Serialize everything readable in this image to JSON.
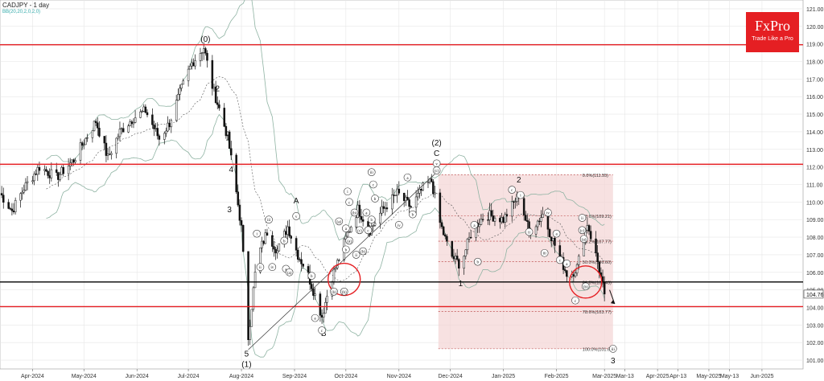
{
  "header": {
    "title": "CADJPY - 1 day",
    "indicator": "BB(20,20,2,0,2,0)"
  },
  "logo": {
    "brand": "FxPro",
    "tagline": "Trade Like a Pro"
  },
  "colors": {
    "background": "#ffffff",
    "grid": "#e6e6e6",
    "resistance_support": "#e51f23",
    "horizontal_black": "#000000",
    "bollinger": "#8fb3a3",
    "fib_zone_fill": "#f4d4d4",
    "fib_line": "#b33333",
    "candle": "#111111",
    "logo_bg": "#e51f23"
  },
  "chart_data": {
    "type": "candlestick",
    "symbol": "CADJPY",
    "timeframe": "1 day",
    "ylim": [
      100.5,
      121.5
    ],
    "x_range": [
      "2024-03-13",
      "2025-06-25"
    ],
    "x_tick_labels": [
      {
        "date": "2024-04-01",
        "label": "Apr-2024"
      },
      {
        "date": "2024-05-01",
        "label": "May-2024"
      },
      {
        "date": "2024-06-01",
        "label": "Jun-2024"
      },
      {
        "date": "2024-07-01",
        "label": "Jul-2024"
      },
      {
        "date": "2024-08-01",
        "label": "Aug-2024"
      },
      {
        "date": "2024-09-01",
        "label": "Sep-2024"
      },
      {
        "date": "2024-10-01",
        "label": "Oct-2024"
      },
      {
        "date": "2024-11-01",
        "label": "Nov-2024"
      },
      {
        "date": "2024-12-01",
        "label": "Dec-2024"
      },
      {
        "date": "2025-01-01",
        "label": "Jan-2025"
      },
      {
        "date": "2025-02-01",
        "label": "Feb-2025"
      },
      {
        "date": "2025-03-01",
        "label": "Mar-2025"
      },
      {
        "date": "2025-03-13",
        "label": "Mar-13"
      },
      {
        "date": "2025-04-01",
        "label": "Apr-2025"
      },
      {
        "date": "2025-04-13",
        "label": "Apr-13"
      },
      {
        "date": "2025-05-01",
        "label": "May-2025"
      },
      {
        "date": "2025-05-13",
        "label": "May-13"
      },
      {
        "date": "2025-06-01",
        "label": "Jun-2025"
      }
    ],
    "y_tick_labels": [
      "101.00",
      "102.00",
      "103.00",
      "104.00",
      "105.00",
      "106.00",
      "107.00",
      "108.00",
      "109.00",
      "110.00",
      "111.00",
      "112.00",
      "113.00",
      "114.00",
      "115.00",
      "116.00",
      "117.00",
      "118.00",
      "119.00",
      "120.00",
      "121.00"
    ],
    "y_ticks": [
      101,
      102,
      103,
      104,
      105,
      106,
      107,
      108,
      109,
      110,
      111,
      112,
      113,
      114,
      115,
      116,
      117,
      118,
      119,
      120,
      121
    ],
    "last_price": {
      "value": 104.76,
      "label": "104.76"
    },
    "horizontal_lines": [
      {
        "y": 118.95,
        "color": "red"
      },
      {
        "y": 112.15,
        "color": "red"
      },
      {
        "y": 104.05,
        "color": "red"
      },
      {
        "y": 105.45,
        "color": "black"
      }
    ],
    "fibonacci": {
      "date_start": "2024-11-24",
      "date_end": "2025-03-06",
      "levels": [
        {
          "y": 111.55,
          "label": "0.0%(111.55)"
        },
        {
          "y": 109.21,
          "label": "23.6%(109.21)"
        },
        {
          "y": 107.77,
          "label": "38.2%(107.77)"
        },
        {
          "y": 106.6,
          "label": "50.0%(106.60)"
        },
        {
          "y": 105.43,
          "label": "61.8%(105.43)"
        },
        {
          "y": 103.77,
          "label": "78.6%(103.77)"
        },
        {
          "y": 101.65,
          "label": "100.0%(101.65)"
        }
      ]
    },
    "price_path": [
      {
        "date": "2024-03-13",
        "close": 110.5
      },
      {
        "date": "2024-03-20",
        "close": 109.5
      },
      {
        "date": "2024-03-27",
        "close": 110.8
      },
      {
        "date": "2024-04-05",
        "close": 112.0
      },
      {
        "date": "2024-04-15",
        "close": 111.4
      },
      {
        "date": "2024-04-25",
        "close": 112.4
      },
      {
        "date": "2024-05-02",
        "close": 113.6
      },
      {
        "date": "2024-05-08",
        "close": 114.6
      },
      {
        "date": "2024-05-15",
        "close": 112.5
      },
      {
        "date": "2024-05-22",
        "close": 114.0
      },
      {
        "date": "2024-05-30",
        "close": 114.8
      },
      {
        "date": "2024-06-06",
        "close": 115.2
      },
      {
        "date": "2024-06-14",
        "close": 113.6
      },
      {
        "date": "2024-06-20",
        "close": 114.5
      },
      {
        "date": "2024-06-26",
        "close": 116.2
      },
      {
        "date": "2024-07-03",
        "close": 117.9
      },
      {
        "date": "2024-07-10",
        "close": 118.8
      },
      {
        "date": "2024-07-15",
        "close": 116.6
      },
      {
        "date": "2024-07-19",
        "close": 115.3
      },
      {
        "date": "2024-07-24",
        "close": 113.7
      },
      {
        "date": "2024-07-28",
        "close": 111.2
      },
      {
        "date": "2024-08-01",
        "close": 108.5
      },
      {
        "date": "2024-08-05",
        "close": 102.3
      },
      {
        "date": "2024-08-10",
        "close": 106.8
      },
      {
        "date": "2024-08-16",
        "close": 108.3
      },
      {
        "date": "2024-08-22",
        "close": 107.2
      },
      {
        "date": "2024-08-28",
        "close": 108.6
      },
      {
        "date": "2024-09-03",
        "close": 107.0
      },
      {
        "date": "2024-09-08",
        "close": 106.1
      },
      {
        "date": "2024-09-13",
        "close": 104.7
      },
      {
        "date": "2024-09-17",
        "close": 103.5
      },
      {
        "date": "2024-09-22",
        "close": 105.5
      },
      {
        "date": "2024-09-27",
        "close": 106.8
      },
      {
        "date": "2024-10-02",
        "close": 108.2
      },
      {
        "date": "2024-10-08",
        "close": 109.6
      },
      {
        "date": "2024-10-15",
        "close": 108.4
      },
      {
        "date": "2024-10-22",
        "close": 109.5
      },
      {
        "date": "2024-10-31",
        "close": 110.5
      },
      {
        "date": "2024-11-08",
        "close": 109.7
      },
      {
        "date": "2024-11-15",
        "close": 110.8
      },
      {
        "date": "2024-11-20",
        "close": 111.2
      },
      {
        "date": "2024-11-25",
        "close": 108.8
      },
      {
        "date": "2024-12-01",
        "close": 107.0
      },
      {
        "date": "2024-12-07",
        "close": 106.4
      },
      {
        "date": "2024-12-14",
        "close": 108.5
      },
      {
        "date": "2024-12-22",
        "close": 109.3
      },
      {
        "date": "2025-01-01",
        "close": 109.0
      },
      {
        "date": "2025-01-10",
        "close": 110.4
      },
      {
        "date": "2025-01-16",
        "close": 108.3
      },
      {
        "date": "2025-01-24",
        "close": 109.3
      },
      {
        "date": "2025-02-01",
        "close": 107.3
      },
      {
        "date": "2025-02-08",
        "close": 105.7
      },
      {
        "date": "2025-02-13",
        "close": 106.3
      },
      {
        "date": "2025-02-19",
        "close": 108.8
      },
      {
        "date": "2025-02-25",
        "close": 106.6
      },
      {
        "date": "2025-03-01",
        "close": 104.76
      }
    ],
    "trendline": {
      "from": {
        "date": "2024-08-05",
        "y": 101.6
      },
      "to": {
        "date": "2024-11-22",
        "y": 111.6
      }
    },
    "circles": [
      {
        "date": "2024-09-30",
        "y": 105.6
      },
      {
        "date": "2025-02-18",
        "y": 105.45
      }
    ],
    "projection_arrow": {
      "from": {
        "date": "2025-03-04",
        "y": 105.0
      },
      "to": {
        "date": "2025-03-07",
        "y": 104.2
      }
    },
    "wave_labels": [
      {
        "text": "(0)",
        "date": "2024-07-11",
        "y": 119.3,
        "style": "plain"
      },
      {
        "text": "2",
        "date": "2024-07-18",
        "y": 116.5,
        "style": "plain"
      },
      {
        "text": "1",
        "date": "2024-07-24",
        "y": 113.7,
        "style": "plain"
      },
      {
        "text": "4",
        "date": "2024-07-26",
        "y": 111.9,
        "style": "plain"
      },
      {
        "text": "3",
        "date": "2024-07-25",
        "y": 109.6,
        "style": "plain"
      },
      {
        "text": "5",
        "date": "2024-08-04",
        "y": 101.4,
        "style": "plain"
      },
      {
        "text": "(1)",
        "date": "2024-08-04",
        "y": 100.8,
        "style": "plain"
      },
      {
        "text": "A",
        "date": "2024-09-02",
        "y": 110.1,
        "style": "plain"
      },
      {
        "text": "B",
        "date": "2024-09-18",
        "y": 102.55,
        "style": "plain"
      },
      {
        "text": "(2)",
        "date": "2024-11-23",
        "y": 113.4,
        "style": "plain"
      },
      {
        "text": "C",
        "date": "2024-11-23",
        "y": 112.8,
        "style": "plain"
      },
      {
        "text": "1",
        "date": "2024-12-07",
        "y": 105.4,
        "style": "plain"
      },
      {
        "text": "2",
        "date": "2025-01-10",
        "y": 111.3,
        "style": "plain"
      },
      {
        "text": "3",
        "date": "2025-03-06",
        "y": 101.0,
        "style": "plain"
      },
      {
        "text": "i",
        "date": "2024-08-10",
        "y": 108.2,
        "style": "circle"
      },
      {
        "text": "ii",
        "date": "2024-08-12",
        "y": 106.3,
        "style": "circle"
      },
      {
        "text": "iii",
        "date": "2024-08-17",
        "y": 109.0,
        "style": "circle"
      },
      {
        "text": "iv",
        "date": "2024-08-19",
        "y": 106.3,
        "style": "circle"
      },
      {
        "text": "b",
        "date": "2024-08-26",
        "y": 107.8,
        "style": "circle"
      },
      {
        "text": "a",
        "date": "2024-08-27",
        "y": 106.2,
        "style": "circle"
      },
      {
        "text": "v",
        "date": "2024-09-02",
        "y": 109.2,
        "style": "circle"
      },
      {
        "text": "(a)",
        "date": "2024-08-29",
        "y": 106.0,
        "style": "circle"
      },
      {
        "text": "b",
        "date": "2024-09-11",
        "y": 105.8,
        "style": "circle"
      },
      {
        "text": "a",
        "date": "2024-09-13",
        "y": 103.4,
        "style": "circle"
      },
      {
        "text": "c",
        "date": "2024-09-17",
        "y": 102.7,
        "style": "circle"
      },
      {
        "text": "(b)",
        "date": "2024-09-24",
        "y": 104.9,
        "style": "circle"
      },
      {
        "text": "(a)",
        "date": "2024-09-27",
        "y": 108.9,
        "style": "circle"
      },
      {
        "text": "(b)",
        "date": "2024-09-30",
        "y": 104.9,
        "style": "circle"
      },
      {
        "text": "i",
        "date": "2024-10-02",
        "y": 110.6,
        "style": "circle"
      },
      {
        "text": "a",
        "date": "2024-10-01",
        "y": 108.5,
        "style": "circle"
      },
      {
        "text": "b",
        "date": "2024-10-01",
        "y": 107.3,
        "style": "circle"
      },
      {
        "text": "c",
        "date": "2024-10-03",
        "y": 110.0,
        "style": "circle"
      },
      {
        "text": "(a)",
        "date": "2024-10-03",
        "y": 107.8,
        "style": "circle"
      },
      {
        "text": "ii",
        "date": "2024-10-07",
        "y": 107.0,
        "style": "circle"
      },
      {
        "text": "(b)",
        "date": "2024-10-06",
        "y": 109.4,
        "style": "circle"
      },
      {
        "text": "(c)",
        "date": "2024-10-09",
        "y": 108.4,
        "style": "circle"
      },
      {
        "text": "(b)",
        "date": "2024-10-11",
        "y": 107.2,
        "style": "circle"
      },
      {
        "text": "a",
        "date": "2024-10-13",
        "y": 109.4,
        "style": "circle"
      },
      {
        "text": "c",
        "date": "2024-10-14",
        "y": 108.4,
        "style": "circle"
      },
      {
        "text": "b",
        "date": "2024-10-16",
        "y": 109.0,
        "style": "circle"
      },
      {
        "text": "iii",
        "date": "2024-10-16",
        "y": 111.7,
        "style": "circle"
      },
      {
        "text": "c",
        "date": "2024-10-17",
        "y": 111.0,
        "style": "circle"
      },
      {
        "text": "b",
        "date": "2024-10-18",
        "y": 110.2,
        "style": "circle"
      },
      {
        "text": "iv",
        "date": "2024-11-01",
        "y": 108.7,
        "style": "circle"
      },
      {
        "text": "a",
        "date": "2024-11-06",
        "y": 111.4,
        "style": "circle"
      },
      {
        "text": "b",
        "date": "2024-11-09",
        "y": 109.3,
        "style": "circle"
      },
      {
        "text": "v",
        "date": "2024-11-23",
        "y": 112.2,
        "style": "circle"
      },
      {
        "text": "(c)",
        "date": "2024-11-23",
        "y": 111.8,
        "style": "circle"
      },
      {
        "text": "a",
        "date": "2024-12-15",
        "y": 108.7,
        "style": "circle"
      },
      {
        "text": "b",
        "date": "2024-12-17",
        "y": 106.6,
        "style": "circle"
      },
      {
        "text": "c",
        "date": "2025-01-06",
        "y": 110.7,
        "style": "circle"
      },
      {
        "text": "i",
        "date": "2025-01-11",
        "y": 110.4,
        "style": "circle"
      },
      {
        "text": "ii",
        "date": "2025-01-16",
        "y": 108.3,
        "style": "circle"
      },
      {
        "text": "iii",
        "date": "2025-01-25",
        "y": 107.1,
        "style": "circle"
      },
      {
        "text": "iv",
        "date": "2025-01-27",
        "y": 109.4,
        "style": "circle"
      },
      {
        "text": "a",
        "date": "2025-02-01",
        "y": 108.2,
        "style": "circle"
      },
      {
        "text": "c",
        "date": "2025-02-03",
        "y": 106.7,
        "style": "circle"
      },
      {
        "text": "c",
        "date": "2025-02-12",
        "y": 104.4,
        "style": "circle"
      },
      {
        "text": "a",
        "date": "2025-02-07",
        "y": 106.5,
        "style": "circle"
      },
      {
        "text": "ii",
        "date": "2025-02-16",
        "y": 109.1,
        "style": "circle"
      },
      {
        "text": "(c)",
        "date": "2025-02-16",
        "y": 108.4,
        "style": "circle"
      },
      {
        "text": "(a)",
        "date": "2025-02-17",
        "y": 107.9,
        "style": "circle"
      },
      {
        "text": "(b)",
        "date": "2025-02-18",
        "y": 105.2,
        "style": "circle"
      },
      {
        "text": "iii",
        "date": "2025-03-06",
        "y": 101.65,
        "style": "circle"
      }
    ]
  }
}
